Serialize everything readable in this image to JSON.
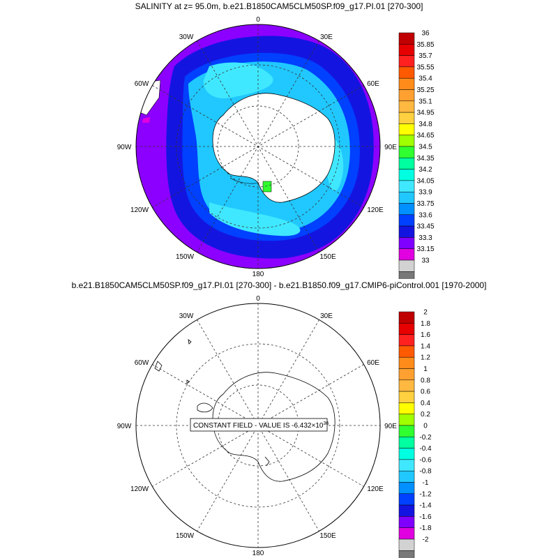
{
  "panel_top": {
    "title": "SALINITY at z=  95.0m, b.e21.B1850CAM5CLM50SP.f09_g17.PI.01 [270-300]",
    "lon_labels": {
      "n": "0",
      "ne": "30E",
      "e1": "60E",
      "e": "90E",
      "e2": "120E",
      "se": "150E",
      "s": "180",
      "sw": "150W",
      "w2": "120W",
      "w": "90W",
      "w1": "60W",
      "nw": "30W"
    },
    "colorbar": {
      "labels": [
        "36",
        "35.85",
        "35.7",
        "35.55",
        "35.4",
        "35.25",
        "35.1",
        "34.95",
        "34.8",
        "34.65",
        "34.5",
        "34.35",
        "34.2",
        "34.05",
        "33.9",
        "33.75",
        "33.6",
        "33.45",
        "33.3",
        "33.15",
        "33"
      ],
      "colors": [
        "#c00000",
        "#e60000",
        "#ff2020",
        "#ff5a00",
        "#ff8c1a",
        "#ffa030",
        "#ffb840",
        "#ffd040",
        "#ffff00",
        "#a0ff00",
        "#30ff30",
        "#00ff9f",
        "#00ffe0",
        "#40e8ff",
        "#20c8ff",
        "#0090ff",
        "#0040ff",
        "#1414e0",
        "#8000ff",
        "#e000e0",
        "#d2d2d2",
        "#787878"
      ]
    }
  },
  "panel_bottom": {
    "title": "b.e21.B1850CAM5CLM50SP.f09_g17.PI.01 [270-300] - b.e21.B1850.f09_g17.CMIP6-piControl.001 [1970-2000]",
    "annotation_text": "CONSTANT FIELD - VALUE IS -6.432×10",
    "annotation_exp": "36",
    "lon_labels": {
      "n": "0",
      "ne": "30E",
      "e1": "60E",
      "e": "90E",
      "e2": "120E",
      "se": "150E",
      "s": "180",
      "sw": "150W",
      "w2": "120W",
      "w": "90W",
      "w1": "60W",
      "nw": "30W"
    },
    "colorbar": {
      "labels": [
        "2",
        "1.8",
        "1.6",
        "1.4",
        "1.2",
        "1",
        "0.8",
        "0.6",
        "0.4",
        "0.2",
        "0",
        "-0.2",
        "-0.4",
        "-0.6",
        "-0.8",
        "-1",
        "-1.2",
        "-1.4",
        "-1.6",
        "-1.8",
        "-2"
      ],
      "colors": [
        "#c00000",
        "#e60000",
        "#ff2020",
        "#ff5a00",
        "#ff8c1a",
        "#ffa030",
        "#ffb840",
        "#ffd040",
        "#ffff00",
        "#a0ff00",
        "#30ff30",
        "#00ff9f",
        "#00ffe0",
        "#40e8ff",
        "#20c8ff",
        "#0090ff",
        "#0040ff",
        "#1414e0",
        "#8000ff",
        "#e000e0",
        "#d2d2d2",
        "#787878"
      ]
    }
  }
}
